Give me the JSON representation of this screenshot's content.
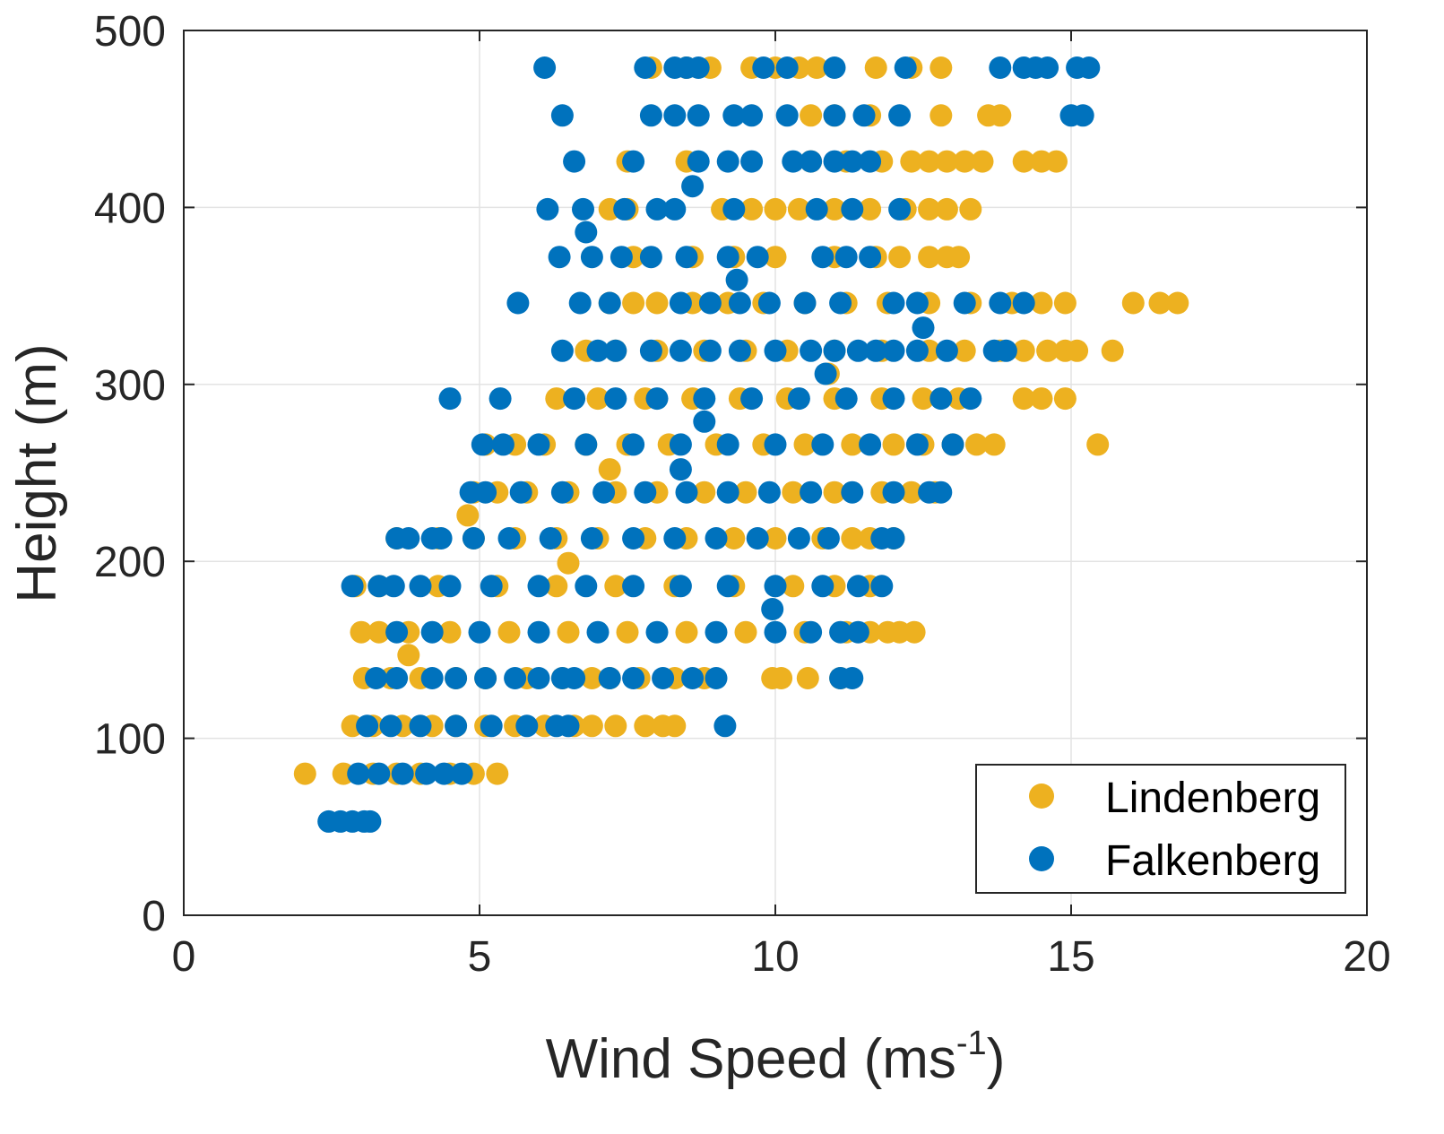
{
  "chart_data": {
    "type": "scatter",
    "xlabel": "Wind Speed (ms-1)",
    "xlabel_main": "Wind Speed (ms",
    "xlabel_sup": "-1",
    "xlabel_close": ")",
    "ylabel": "Height (m)",
    "xlim": [
      0,
      20
    ],
    "ylim": [
      0,
      500
    ],
    "xticks": [
      0,
      5,
      10,
      15,
      20
    ],
    "yticks": [
      0,
      100,
      200,
      300,
      400,
      500
    ],
    "grid": true,
    "legend_position": "bottom-right",
    "series": [
      {
        "name": "Lindenberg",
        "color": "#EDB120",
        "rows": [
          {
            "y": 80,
            "x": [
              2.05,
              2.7,
              3.2,
              3.6,
              4.0,
              4.5,
              4.9,
              5.3
            ]
          },
          {
            "y": 107,
            "x": [
              2.85,
              3.2,
              3.7,
              4.2,
              4.6,
              5.1,
              5.6,
              6.1,
              6.6,
              6.9,
              7.3,
              7.8,
              8.1,
              8.3
            ]
          },
          {
            "y": 134,
            "x": [
              3.05,
              3.5,
              4.0,
              4.6,
              5.1,
              5.8,
              6.4,
              6.9,
              7.2,
              7.7,
              8.3,
              8.8,
              9.95,
              10.1,
              10.55,
              11.1
            ]
          },
          {
            "y": 147,
            "x": [
              3.8
            ]
          },
          {
            "y": 160,
            "x": [
              3.0,
              3.3,
              3.8,
              4.5,
              5.5,
              6.5,
              7.5,
              8.5,
              9.5,
              10.5,
              11.2,
              11.6,
              11.9,
              12.1,
              12.35
            ]
          },
          {
            "y": 186,
            "x": [
              2.9,
              3.3,
              4.3,
              5.3,
              6.3,
              7.3,
              8.3,
              9.3,
              10.3,
              11.0,
              11.6
            ]
          },
          {
            "y": 199,
            "x": [
              6.5
            ]
          },
          {
            "y": 213,
            "x": [
              3.6,
              4.3,
              4.9,
              5.6,
              6.3,
              7.0,
              7.8,
              8.5,
              9.3,
              10.0,
              10.8,
              11.3,
              11.6,
              12.0
            ]
          },
          {
            "y": 226,
            "x": [
              4.8
            ]
          },
          {
            "y": 239,
            "x": [
              4.9,
              5.3,
              5.8,
              6.5,
              7.3,
              8.0,
              8.8,
              9.5,
              10.3,
              11.0,
              11.8,
              12.3,
              12.7
            ]
          },
          {
            "y": 252,
            "x": [
              7.2
            ]
          },
          {
            "y": 266,
            "x": [
              5.1,
              5.6,
              6.1,
              6.8,
              7.5,
              8.2,
              9.0,
              9.8,
              10.5,
              11.3,
              12.0,
              12.5,
              13.0,
              13.4,
              13.7,
              15.45
            ]
          },
          {
            "y": 292,
            "x": [
              6.3,
              7.0,
              7.8,
              8.6,
              9.4,
              10.2,
              11.0,
              11.8,
              12.5,
              13.1,
              14.2,
              14.5,
              14.9
            ]
          },
          {
            "y": 306,
            "x": [
              10.9
            ]
          },
          {
            "y": 319,
            "x": [
              6.8,
              7.3,
              8.0,
              8.8,
              9.5,
              10.2,
              11.0,
              11.8,
              12.6,
              13.2,
              13.8,
              14.2,
              14.6,
              14.9,
              15.1,
              15.7
            ]
          },
          {
            "y": 346,
            "x": [
              7.2,
              7.6,
              8.0,
              8.6,
              9.2,
              9.8,
              10.5,
              11.2,
              11.9,
              12.6,
              13.3,
              14.0,
              14.5,
              14.9,
              16.05,
              16.5,
              16.8
            ]
          },
          {
            "y": 372,
            "x": [
              7.6,
              8.6,
              9.3,
              10.0,
              11.0,
              11.7,
              12.1,
              12.6,
              12.9,
              13.1
            ]
          },
          {
            "y": 399,
            "x": [
              7.2,
              7.5,
              9.1,
              9.6,
              10.0,
              10.4,
              11.0,
              11.6,
              12.2,
              12.6,
              12.9,
              13.3
            ]
          },
          {
            "y": 426,
            "x": [
              7.5,
              8.5,
              10.6,
              11.2,
              11.8,
              12.3,
              12.6,
              12.9,
              13.2,
              13.5,
              14.2,
              14.5,
              14.75
            ]
          },
          {
            "y": 452,
            "x": [
              10.6,
              11.0,
              11.6,
              12.8,
              13.6,
              13.8
            ]
          },
          {
            "y": 479,
            "x": [
              7.9,
              8.5,
              8.9,
              9.6,
              10.0,
              10.4,
              10.7,
              11.7,
              12.3,
              12.8
            ]
          }
        ]
      },
      {
        "name": "Falkenberg",
        "color": "#0072BD",
        "rows": [
          {
            "y": 53,
            "x": [
              2.45,
              2.65,
              2.85,
              3.05,
              3.15
            ]
          },
          {
            "y": 80,
            "x": [
              2.95,
              3.3,
              3.7,
              4.1,
              4.4,
              4.7
            ]
          },
          {
            "y": 107,
            "x": [
              3.1,
              3.5,
              4.0,
              4.6,
              5.2,
              5.8,
              6.3,
              6.5,
              9.15
            ]
          },
          {
            "y": 134,
            "x": [
              3.25,
              3.6,
              4.2,
              4.6,
              5.1,
              5.6,
              6.0,
              6.4,
              6.6,
              7.2,
              7.6,
              8.1,
              8.6,
              9.0,
              11.1,
              11.3
            ]
          },
          {
            "y": 160,
            "x": [
              3.6,
              4.2,
              5.0,
              6.0,
              7.0,
              8.0,
              9.0,
              10.0,
              10.6,
              11.1,
              11.4
            ]
          },
          {
            "y": 173,
            "x": [
              9.95
            ]
          },
          {
            "y": 186,
            "x": [
              2.85,
              3.3,
              3.55,
              4.0,
              4.5,
              5.2,
              6.0,
              6.8,
              7.6,
              8.4,
              9.2,
              10.0,
              10.8,
              11.4,
              11.8
            ]
          },
          {
            "y": 213,
            "x": [
              3.6,
              3.8,
              4.2,
              4.35,
              4.9,
              5.5,
              6.2,
              6.9,
              7.6,
              8.3,
              9.0,
              9.7,
              10.4,
              10.9,
              11.8,
              12.0
            ]
          },
          {
            "y": 239,
            "x": [
              4.85,
              5.1,
              5.7,
              6.4,
              7.1,
              7.8,
              8.5,
              9.2,
              9.9,
              10.6,
              11.3,
              12.0,
              12.6,
              12.8
            ]
          },
          {
            "y": 252,
            "x": [
              8.4
            ]
          },
          {
            "y": 266,
            "x": [
              5.05,
              5.4,
              6.0,
              6.8,
              7.6,
              8.4,
              9.2,
              10.0,
              10.8,
              11.6,
              12.4,
              13.0
            ]
          },
          {
            "y": 279,
            "x": [
              8.8
            ]
          },
          {
            "y": 292,
            "x": [
              4.5,
              5.35,
              6.6,
              7.3,
              8.0,
              8.8,
              9.6,
              10.4,
              11.2,
              12.0,
              12.8,
              13.3
            ]
          },
          {
            "y": 306,
            "x": [
              10.85
            ]
          },
          {
            "y": 319,
            "x": [
              6.4,
              7.0,
              7.3,
              7.9,
              8.4,
              8.9,
              9.4,
              10.0,
              10.6,
              11.0,
              11.4,
              11.7,
              12.0,
              12.4,
              12.9,
              13.7,
              13.9
            ]
          },
          {
            "y": 332,
            "x": [
              12.5
            ]
          },
          {
            "y": 346,
            "x": [
              5.65,
              6.7,
              7.2,
              8.4,
              8.9,
              9.4,
              9.9,
              10.5,
              11.1,
              12.0,
              12.4,
              13.2,
              13.8,
              14.2
            ]
          },
          {
            "y": 359,
            "x": [
              9.35
            ]
          },
          {
            "y": 372,
            "x": [
              6.35,
              6.9,
              7.4,
              7.9,
              8.5,
              9.2,
              9.7,
              10.8,
              11.2,
              11.6
            ]
          },
          {
            "y": 386,
            "x": [
              6.8
            ]
          },
          {
            "y": 399,
            "x": [
              6.15,
              6.75,
              7.45,
              8.0,
              8.3,
              9.3,
              10.7,
              11.3,
              12.1
            ]
          },
          {
            "y": 412,
            "x": [
              8.6
            ]
          },
          {
            "y": 426,
            "x": [
              6.6,
              7.6,
              8.7,
              9.2,
              9.6,
              10.3,
              10.6,
              11.0,
              11.3,
              11.6
            ]
          },
          {
            "y": 452,
            "x": [
              6.4,
              7.9,
              8.3,
              8.7,
              9.3,
              9.6,
              10.2,
              11.0,
              11.5,
              12.1,
              15.0,
              15.2
            ]
          },
          {
            "y": 479,
            "x": [
              6.1,
              7.8,
              8.3,
              8.5,
              8.7,
              9.8,
              10.2,
              11.0,
              12.2,
              13.8,
              14.2,
              14.4,
              14.6,
              15.1,
              15.3
            ]
          }
        ]
      }
    ]
  }
}
